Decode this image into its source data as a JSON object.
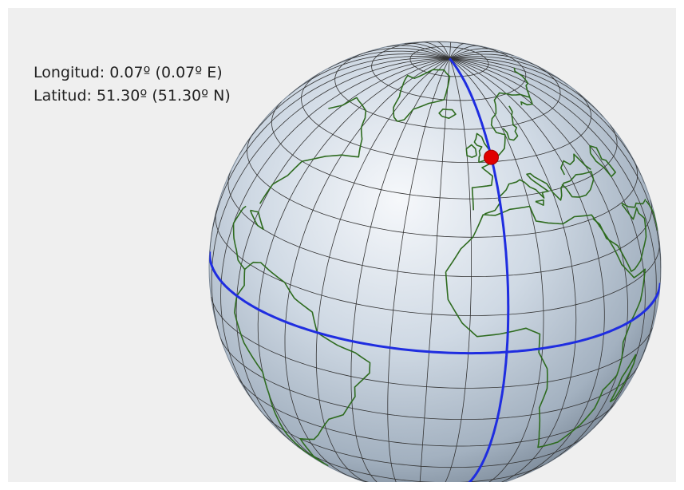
{
  "readout": {
    "longitude_text": "Longitud: 0.07º (0.07º E)",
    "latitude_text": "Latitud: 51.30º (51.30º N)"
  },
  "globe": {
    "selected_point": {
      "longitude": 0.07,
      "latitude": 51.3
    },
    "graticule_step_degrees": 10,
    "highlighted_lines": [
      "equator",
      "prime-meridian"
    ]
  },
  "colors": {
    "background": "#efefef",
    "grid_line": "#333333",
    "coastline": "#2e6b1f",
    "highlight_line": "#1f2de0",
    "marker": "#e00000",
    "sphere_light": "#f4f7fb",
    "sphere_dark": "#6f7f8f"
  }
}
